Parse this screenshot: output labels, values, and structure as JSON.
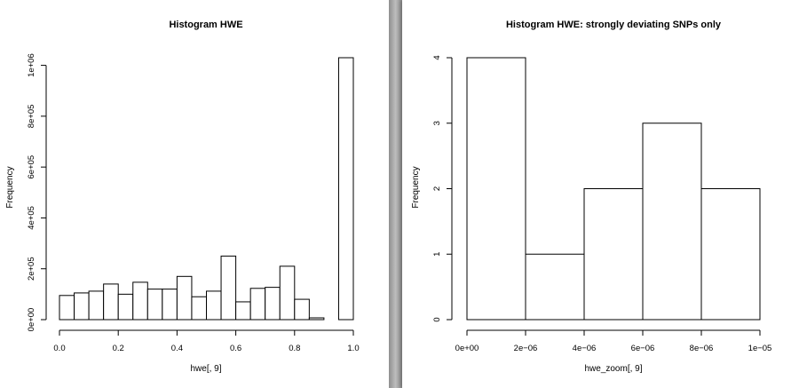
{
  "chart_data": [
    {
      "type": "bar",
      "title": "Histogram HWE",
      "xlabel": "hwe[, 9]",
      "ylabel": "Frequency",
      "bins": [
        [
          0.0,
          0.05
        ],
        [
          0.05,
          0.1
        ],
        [
          0.1,
          0.15
        ],
        [
          0.15,
          0.2
        ],
        [
          0.2,
          0.25
        ],
        [
          0.25,
          0.3
        ],
        [
          0.3,
          0.35
        ],
        [
          0.35,
          0.4
        ],
        [
          0.4,
          0.45
        ],
        [
          0.45,
          0.5
        ],
        [
          0.5,
          0.55
        ],
        [
          0.55,
          0.6
        ],
        [
          0.6,
          0.65
        ],
        [
          0.65,
          0.7
        ],
        [
          0.7,
          0.75
        ],
        [
          0.75,
          0.8
        ],
        [
          0.8,
          0.85
        ],
        [
          0.85,
          0.9
        ],
        [
          0.9,
          0.95
        ],
        [
          0.95,
          1.0
        ]
      ],
      "values": [
        95000,
        105000,
        112000,
        140000,
        100000,
        147000,
        120000,
        120000,
        170000,
        90000,
        112000,
        250000,
        70000,
        123000,
        127000,
        210000,
        80000,
        7000,
        0,
        1030000
      ],
      "xlim": [
        0,
        1
      ],
      "ylim": [
        0,
        1030000
      ],
      "x_ticks": [
        0.0,
        0.2,
        0.4,
        0.6,
        0.8,
        1.0
      ],
      "x_tick_labels": [
        "0.0",
        "0.2",
        "0.4",
        "0.6",
        "0.8",
        "1.0"
      ],
      "y_ticks": [
        0,
        200000,
        400000,
        600000,
        800000,
        1000000
      ],
      "y_tick_labels": [
        "0e+00",
        "2e+05",
        "4e+05",
        "6e+05",
        "8e+05",
        "1e+06"
      ],
      "grid": false
    },
    {
      "type": "bar",
      "title": "Histogram HWE: strongly deviating SNPs only",
      "xlabel": "hwe_zoom[, 9]",
      "ylabel": "Frequency",
      "bins": [
        [
          0,
          2e-06
        ],
        [
          2e-06,
          4e-06
        ],
        [
          4e-06,
          6e-06
        ],
        [
          6e-06,
          8e-06
        ],
        [
          8e-06,
          1e-05
        ]
      ],
      "values": [
        4,
        1,
        2,
        3,
        2
      ],
      "xlim": [
        0,
        1e-05
      ],
      "ylim": [
        0,
        4
      ],
      "x_ticks": [
        0,
        2e-06,
        4e-06,
        6e-06,
        8e-06,
        1e-05
      ],
      "x_tick_labels": [
        "0e+00",
        "2e−06",
        "4e−06",
        "6e−06",
        "8e−06",
        "1e−05"
      ],
      "y_ticks": [
        0,
        1,
        2,
        3,
        4
      ],
      "y_tick_labels": [
        "0",
        "1",
        "2",
        "3",
        "4"
      ],
      "grid": false
    }
  ]
}
